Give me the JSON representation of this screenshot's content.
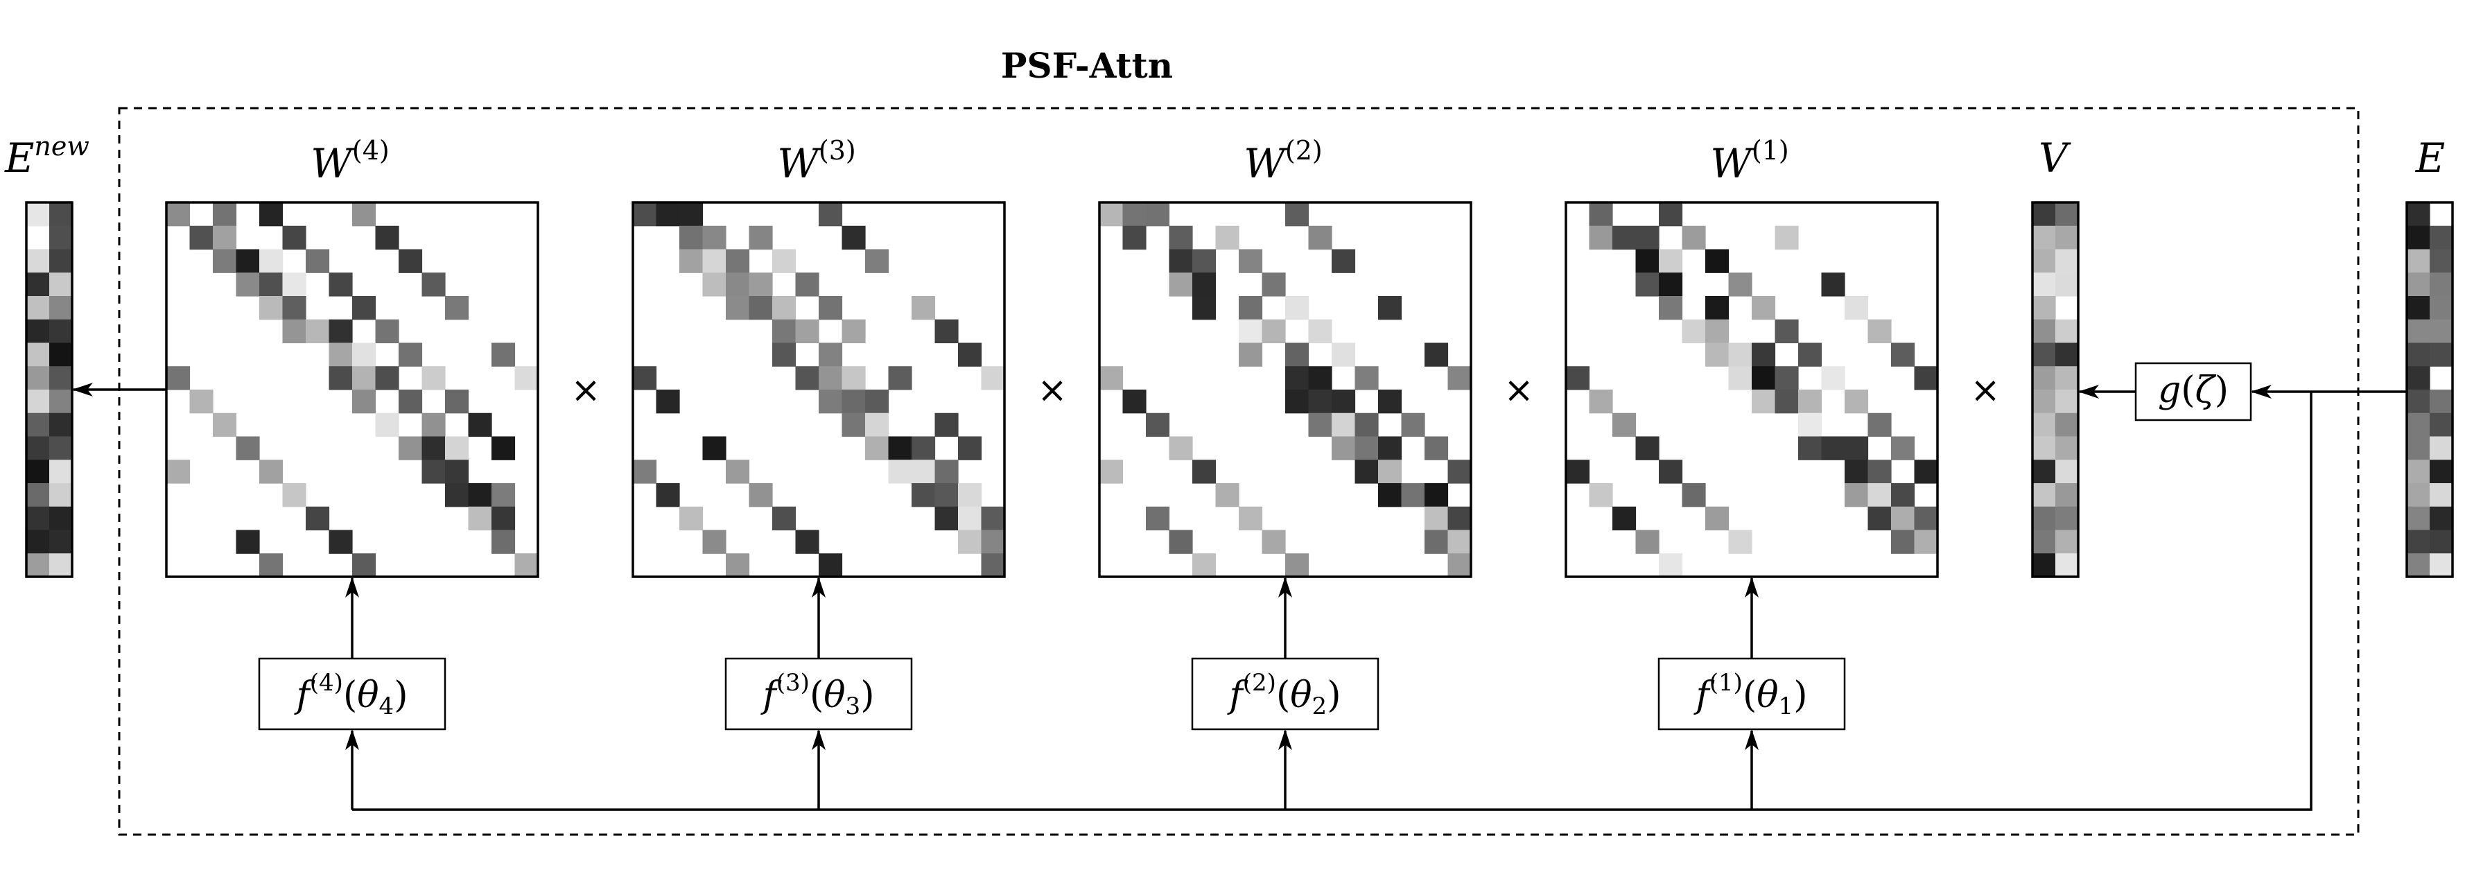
{
  "title": "PSF-Attn",
  "vectors": {
    "e_new": {
      "base": "E",
      "sup": "new"
    },
    "v": {
      "base": "V"
    },
    "e": {
      "base": "E"
    }
  },
  "matrices": [
    {
      "base": "W",
      "sup": "(4)"
    },
    {
      "base": "W",
      "sup": "(3)"
    },
    {
      "base": "W",
      "sup": "(2)"
    },
    {
      "base": "W",
      "sup": "(1)"
    }
  ],
  "functions": [
    {
      "name": "f",
      "sup": "(4)",
      "arg": "θ",
      "sub": "4"
    },
    {
      "name": "f",
      "sup": "(3)",
      "arg": "θ",
      "sub": "3"
    },
    {
      "name": "f",
      "sup": "(2)",
      "arg": "θ",
      "sub": "2"
    },
    {
      "name": "f",
      "sup": "(1)",
      "arg": "θ",
      "sub": "1"
    }
  ],
  "g_box": {
    "name": "g",
    "arg": "ζ"
  },
  "multiply_symbol": "×"
}
